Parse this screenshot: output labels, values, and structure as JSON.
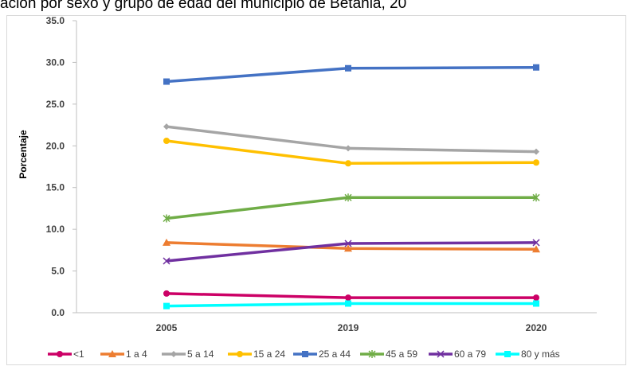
{
  "title": "ación por sexo y grupo de edad del municipio de Betania, 20",
  "chart_data": {
    "type": "line",
    "title": "ación por sexo y grupo de edad del municipio de Betania, 20",
    "xlabel": "",
    "ylabel": "Porcentaje",
    "categories": [
      "2005",
      "2019",
      "2020"
    ],
    "ylim": [
      0,
      35
    ],
    "yticks": [
      "0.0",
      "5.0",
      "10.0",
      "15.0",
      "20.0",
      "25.0",
      "30.0",
      "35.0"
    ],
    "grid": false,
    "legend_position": "bottom",
    "series": [
      {
        "name": "<1",
        "values": [
          2.3,
          1.8,
          1.8
        ],
        "color": "#cc0066",
        "marker": "circle"
      },
      {
        "name": "1 a 4",
        "values": [
          8.4,
          7.7,
          7.6
        ],
        "color": "#ed7d31",
        "marker": "triangle"
      },
      {
        "name": "5 a 14",
        "values": [
          22.3,
          19.7,
          19.3
        ],
        "color": "#a5a5a5",
        "marker": "diamond"
      },
      {
        "name": "15 a 24",
        "values": [
          20.6,
          17.9,
          18.0
        ],
        "color": "#ffc000",
        "marker": "circle"
      },
      {
        "name": "25 a 44",
        "values": [
          27.7,
          29.3,
          29.4
        ],
        "color": "#4472c4",
        "marker": "square"
      },
      {
        "name": "45 a 59",
        "values": [
          11.3,
          13.8,
          13.8
        ],
        "color": "#70ad47",
        "marker": "star"
      },
      {
        "name": "60 a 79",
        "values": [
          6.2,
          8.3,
          8.4
        ],
        "color": "#7030a0",
        "marker": "x"
      },
      {
        "name": "80 y más",
        "values": [
          0.8,
          1.1,
          1.1
        ],
        "color": "#00ffff",
        "marker": "square"
      }
    ]
  }
}
